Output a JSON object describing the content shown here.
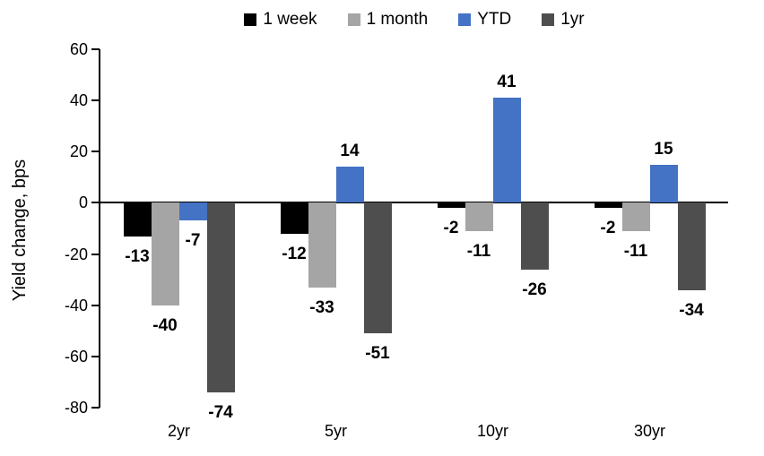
{
  "chart_data": {
    "type": "bar",
    "title": "",
    "categories": [
      "2yr",
      "5yr",
      "10yr",
      "30yr"
    ],
    "series": [
      {
        "name": "1 week",
        "color": "#000000",
        "values": [
          -13,
          -12,
          -2,
          -2
        ]
      },
      {
        "name": "1 month",
        "color": "#A5A5A5",
        "values": [
          -40,
          -33,
          -11,
          -11
        ]
      },
      {
        "name": "YTD",
        "color": "#4472C4",
        "values": [
          -7,
          14,
          41,
          15
        ]
      },
      {
        "name": "1yr",
        "color": "#4E4E4E",
        "values": [
          -74,
          -51,
          -26,
          -34
        ]
      }
    ],
    "xlabel": "",
    "ylabel": "Yield change, bps",
    "ylim": [
      -80,
      60
    ],
    "yticks": [
      60,
      40,
      20,
      0,
      -20,
      -40,
      -60,
      -80
    ],
    "grid": false,
    "legend_position": "top",
    "data_labels": true,
    "axis_color": "#000000",
    "background_color": "#FFFFFF"
  }
}
